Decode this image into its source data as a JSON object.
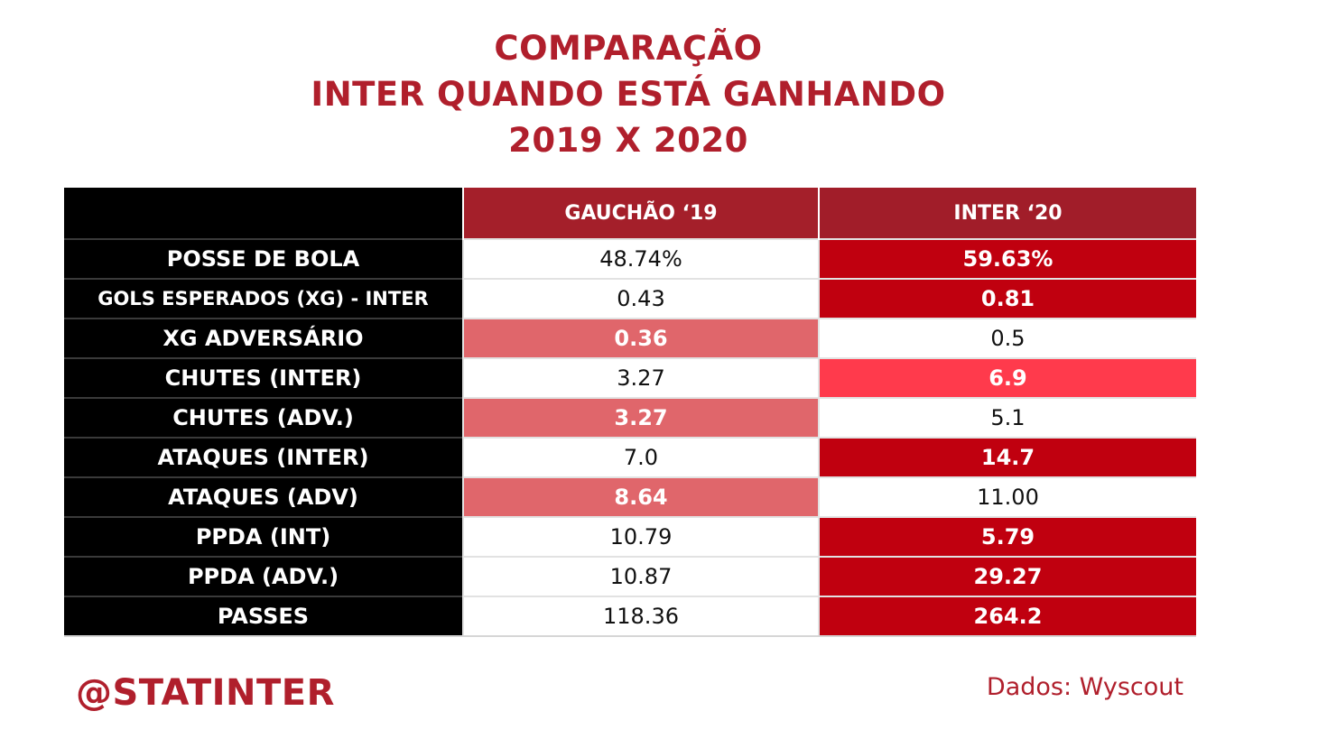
{
  "title": {
    "line1": "COMPARAÇÃO",
    "line2": "INTER QUANDO ESTÁ GANHANDO",
    "line3": "2019 X 2020"
  },
  "colors": {
    "brand_red": "#b01f2c",
    "header_red": "#a41f2a",
    "dark_red": "#c0000f",
    "mid_red": "#ff3a4c",
    "light_red": "#e0666b"
  },
  "table": {
    "headers": [
      "",
      "GAUCHÃO ‘19",
      "INTER ‘20"
    ],
    "rows": [
      {
        "label": "POSSE DE BOLA",
        "v2019": "48.74%",
        "v2020": "59.63%",
        "c2019": "#ffffff",
        "c2020": "#c0000f"
      },
      {
        "label": "GOLS ESPERADOS (XG) - INTER",
        "v2019": "0.43",
        "v2020": "0.81",
        "c2019": "#ffffff",
        "c2020": "#c0000f"
      },
      {
        "label": "XG ADVERSÁRIO",
        "v2019": "0.36",
        "v2020": "0.5",
        "c2019": "#e0666b",
        "c2020": "#ffffff"
      },
      {
        "label": "CHUTES (INTER)",
        "v2019": "3.27",
        "v2020": "6.9",
        "c2019": "#ffffff",
        "c2020": "#ff3a4c"
      },
      {
        "label": "CHUTES (ADV.)",
        "v2019": "3.27",
        "v2020": "5.1",
        "c2019": "#e0666b",
        "c2020": "#ffffff"
      },
      {
        "label": "ATAQUES (INTER)",
        "v2019": "7.0",
        "v2020": "14.7",
        "c2019": "#ffffff",
        "c2020": "#c0000f"
      },
      {
        "label": "ATAQUES (ADV)",
        "v2019": "8.64",
        "v2020": "11.00",
        "c2019": "#e0666b",
        "c2020": "#ffffff"
      },
      {
        "label": "PPDA (INT)",
        "v2019": "10.79",
        "v2020": "5.79",
        "c2019": "#ffffff",
        "c2020": "#c0000f"
      },
      {
        "label": "PPDA (ADV.)",
        "v2019": "10.87",
        "v2020": "29.27",
        "c2019": "#ffffff",
        "c2020": "#c0000f"
      },
      {
        "label": "PASSES",
        "v2019": "118.36",
        "v2020": "264.2",
        "c2019": "#ffffff",
        "c2020": "#c0000f"
      }
    ]
  },
  "footer": {
    "handle": "@STATINTER",
    "source": "Dados: Wyscout"
  }
}
